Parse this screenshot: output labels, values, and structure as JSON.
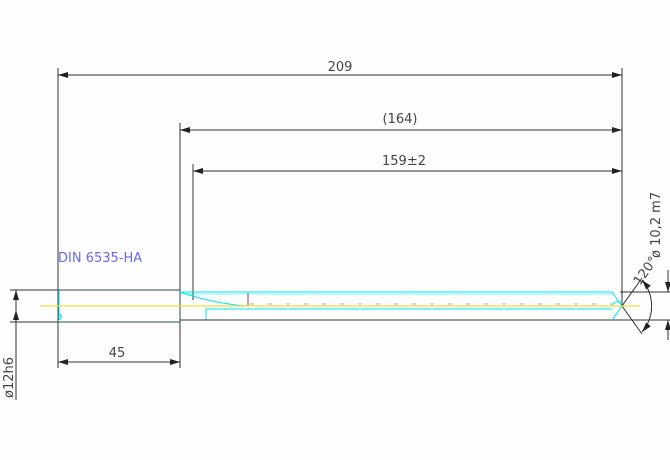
{
  "drawing": {
    "standard_label": "DIN 6535-HA",
    "dim_overall_length": "209",
    "dim_reference_length": "(164)",
    "dim_flute_length": "159±2",
    "dim_shank_length": "45",
    "dim_shank_diameter": "ø12h6",
    "dim_cutting_diameter": "ø 10,2 m7",
    "dim_point_angle": "120°"
  },
  "colors": {
    "dimension": "#333333",
    "outline_cyan": "#00e5ee",
    "centerline_yellow": "#f0e040",
    "text_blue": "#6a6af0",
    "accent_red": "#a04040"
  }
}
